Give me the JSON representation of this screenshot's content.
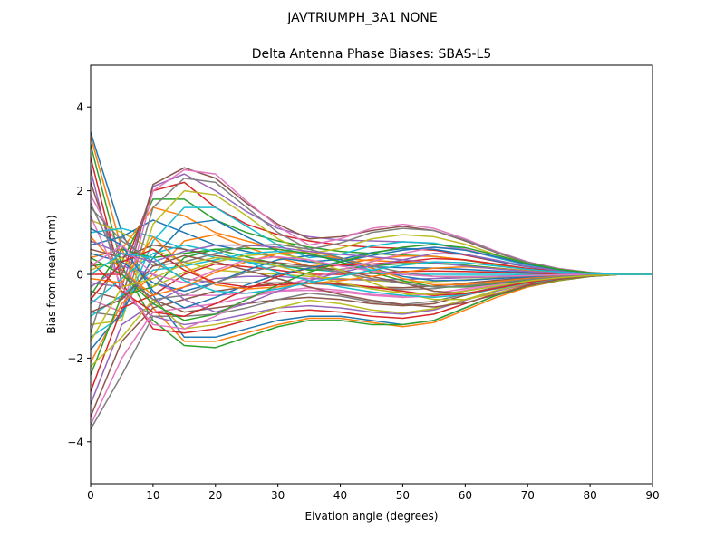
{
  "figure": {
    "suptitle": "JAVTRIUMPH_3A1  NONE"
  },
  "chart_data": {
    "type": "line",
    "title": "Delta Antenna Phase Biases: SBAS-L5",
    "xlabel": "Elvation angle (degrees)",
    "ylabel": "Bias from mean (mm)",
    "xlim": [
      0,
      90
    ],
    "ylim": [
      -5,
      5
    ],
    "xticks": [
      0,
      10,
      20,
      30,
      40,
      50,
      60,
      70,
      80,
      90
    ],
    "yticks": [
      -4,
      -2,
      0,
      2,
      4
    ],
    "ytick_labels": [
      "−4",
      "−2",
      "0",
      "2",
      "4"
    ],
    "grid": false,
    "legend": "none",
    "x": [
      0,
      5,
      10,
      15,
      20,
      25,
      30,
      35,
      40,
      45,
      50,
      55,
      60,
      65,
      70,
      75,
      80,
      85,
      90
    ],
    "colors": [
      "#1f77b4",
      "#ff7f0e",
      "#2ca02c",
      "#d62728",
      "#9467bd",
      "#8c564b",
      "#e377c2",
      "#7f7f7f",
      "#bcbd22",
      "#17becf"
    ],
    "series": [
      {
        "values": [
          3.4,
          1.0,
          -0.5,
          -1.5,
          -1.5,
          -1.3,
          -1.1,
          -1.0,
          -1.0,
          -1.1,
          -1.2,
          -1.1,
          -0.8,
          -0.5,
          -0.3,
          -0.15,
          -0.05,
          0,
          0
        ]
      },
      {
        "values": [
          3.3,
          0.6,
          -0.8,
          -1.6,
          -1.6,
          -1.4,
          -1.2,
          -1.05,
          -1.05,
          -1.15,
          -1.25,
          -1.15,
          -0.85,
          -0.55,
          -0.3,
          -0.15,
          -0.05,
          0,
          0
        ]
      },
      {
        "values": [
          3.1,
          0.2,
          -1.1,
          -1.7,
          -1.75,
          -1.5,
          -1.25,
          -1.1,
          -1.1,
          -1.2,
          -1.2,
          -1.1,
          -0.8,
          -0.5,
          -0.28,
          -0.14,
          -0.05,
          0,
          0
        ]
      },
      {
        "values": [
          2.8,
          -0.2,
          -1.3,
          -1.4,
          -1.3,
          -1.1,
          -0.9,
          -0.85,
          -0.9,
          -1.0,
          -1.05,
          -0.95,
          -0.7,
          -0.45,
          -0.25,
          -0.12,
          -0.04,
          0,
          0
        ]
      },
      {
        "values": [
          2.5,
          -0.5,
          -1.0,
          -1.2,
          -1.1,
          -0.95,
          -0.8,
          -0.75,
          -0.8,
          -0.9,
          -0.95,
          -0.85,
          -0.62,
          -0.4,
          -0.22,
          -0.1,
          -0.03,
          0,
          0
        ]
      },
      {
        "values": [
          2.2,
          0.0,
          -0.6,
          -0.9,
          -0.8,
          -0.7,
          -0.6,
          -0.55,
          -0.6,
          -0.7,
          -0.75,
          -0.7,
          -0.5,
          -0.33,
          -0.18,
          -0.09,
          -0.03,
          0,
          0
        ]
      },
      {
        "values": [
          1.9,
          0.5,
          -0.2,
          -0.5,
          -0.5,
          -0.45,
          -0.4,
          -0.38,
          -0.42,
          -0.5,
          -0.55,
          -0.52,
          -0.38,
          -0.25,
          -0.14,
          -0.07,
          -0.02,
          0,
          0
        ]
      },
      {
        "values": [
          1.6,
          0.8,
          0.3,
          -0.1,
          -0.2,
          -0.2,
          -0.2,
          -0.22,
          -0.26,
          -0.32,
          -0.36,
          -0.34,
          -0.25,
          -0.17,
          -0.1,
          -0.05,
          -0.02,
          0,
          0
        ]
      },
      {
        "values": [
          1.3,
          1.0,
          0.6,
          0.3,
          0.1,
          0.05,
          0.0,
          -0.05,
          -0.1,
          -0.15,
          -0.18,
          -0.17,
          -0.13,
          -0.09,
          -0.05,
          -0.03,
          -0.01,
          0,
          0
        ]
      },
      {
        "values": [
          1.0,
          1.1,
          0.9,
          0.6,
          0.4,
          0.3,
          0.2,
          0.12,
          0.06,
          0.02,
          0.0,
          0.0,
          0.0,
          0.0,
          0.0,
          0.0,
          0.0,
          0,
          0
        ]
      },
      {
        "values": [
          0.7,
          0.9,
          1.3,
          1.0,
          0.7,
          0.55,
          0.4,
          0.3,
          0.22,
          0.18,
          0.16,
          0.15,
          0.12,
          0.08,
          0.05,
          0.03,
          0.01,
          0,
          0
        ]
      },
      {
        "values": [
          0.4,
          0.6,
          1.6,
          1.4,
          1.0,
          0.8,
          0.6,
          0.48,
          0.38,
          0.33,
          0.3,
          0.28,
          0.22,
          0.15,
          0.09,
          0.05,
          0.02,
          0,
          0
        ]
      },
      {
        "values": [
          0.2,
          0.3,
          1.8,
          1.8,
          1.3,
          1.0,
          0.8,
          0.65,
          0.55,
          0.5,
          0.46,
          0.43,
          0.34,
          0.23,
          0.13,
          0.07,
          0.02,
          0,
          0
        ]
      },
      {
        "values": [
          0.0,
          0.0,
          2.0,
          2.2,
          1.6,
          1.2,
          0.95,
          0.8,
          0.7,
          0.65,
          0.62,
          0.58,
          0.46,
          0.31,
          0.18,
          0.09,
          0.03,
          0,
          0
        ]
      },
      {
        "values": [
          -0.2,
          -0.3,
          2.1,
          2.4,
          2.0,
          1.5,
          1.1,
          0.9,
          0.82,
          0.8,
          0.78,
          0.74,
          0.58,
          0.4,
          0.23,
          0.11,
          0.04,
          0,
          0
        ]
      },
      {
        "values": [
          -0.4,
          -0.6,
          2.15,
          2.55,
          2.3,
          1.7,
          1.2,
          0.85,
          0.9,
          1.05,
          1.15,
          1.05,
          0.8,
          0.52,
          0.28,
          0.13,
          0.04,
          0,
          0
        ]
      },
      {
        "values": [
          -0.6,
          -0.9,
          2.0,
          2.5,
          2.4,
          1.75,
          1.15,
          0.7,
          0.85,
          1.1,
          1.2,
          1.1,
          0.85,
          0.55,
          0.3,
          0.14,
          0.05,
          0,
          0
        ]
      },
      {
        "values": [
          -0.9,
          -1.0,
          1.6,
          2.3,
          2.2,
          1.6,
          1.0,
          0.6,
          0.75,
          1.0,
          1.1,
          1.05,
          0.82,
          0.53,
          0.29,
          0.13,
          0.04,
          0,
          0
        ]
      },
      {
        "values": [
          -1.2,
          -1.1,
          1.2,
          2.0,
          1.9,
          1.4,
          0.85,
          0.5,
          0.62,
          0.85,
          0.95,
          0.9,
          0.72,
          0.47,
          0.26,
          0.12,
          0.04,
          0,
          0
        ]
      },
      {
        "values": [
          -1.5,
          -1.0,
          0.8,
          1.6,
          1.6,
          1.15,
          0.7,
          0.4,
          0.48,
          0.68,
          0.78,
          0.75,
          0.6,
          0.4,
          0.22,
          0.1,
          0.03,
          0,
          0
        ]
      },
      {
        "values": [
          -1.8,
          -0.9,
          0.4,
          1.2,
          1.3,
          0.9,
          0.55,
          0.3,
          0.36,
          0.52,
          0.62,
          0.6,
          0.48,
          0.32,
          0.18,
          0.08,
          0.03,
          0,
          0
        ]
      },
      {
        "values": [
          -2.1,
          -0.7,
          0.0,
          0.8,
          0.95,
          0.65,
          0.4,
          0.2,
          0.24,
          0.36,
          0.44,
          0.43,
          0.35,
          0.24,
          0.13,
          0.06,
          0.02,
          0,
          0
        ]
      },
      {
        "values": [
          -2.4,
          -0.5,
          -0.3,
          0.4,
          0.6,
          0.42,
          0.25,
          0.1,
          0.12,
          0.2,
          0.26,
          0.26,
          0.22,
          0.15,
          0.08,
          0.04,
          0.01,
          0,
          0
        ]
      },
      {
        "values": [
          -2.8,
          -0.8,
          -0.5,
          0.0,
          0.25,
          0.18,
          0.1,
          0.0,
          0.0,
          0.03,
          0.07,
          0.08,
          0.07,
          0.05,
          0.03,
          0.01,
          0.0,
          0,
          0
        ]
      },
      {
        "values": [
          -3.1,
          -1.2,
          -0.7,
          -0.3,
          -0.1,
          -0.05,
          -0.05,
          -0.1,
          -0.12,
          -0.13,
          -0.12,
          -0.1,
          -0.08,
          -0.05,
          -0.03,
          -0.01,
          0.0,
          0,
          0
        ]
      },
      {
        "values": [
          -3.4,
          -1.6,
          -0.8,
          -0.6,
          -0.4,
          -0.3,
          -0.2,
          -0.2,
          -0.24,
          -0.3,
          -0.32,
          -0.28,
          -0.21,
          -0.14,
          -0.08,
          -0.04,
          -0.01,
          0,
          0
        ]
      },
      {
        "values": [
          -3.6,
          -2.0,
          -0.9,
          -0.8,
          -0.7,
          -0.55,
          -0.4,
          -0.32,
          -0.38,
          -0.48,
          -0.52,
          -0.46,
          -0.34,
          -0.22,
          -0.12,
          -0.06,
          -0.02,
          0,
          0
        ]
      },
      {
        "values": [
          -3.7,
          -2.4,
          -1.0,
          -1.0,
          -0.95,
          -0.8,
          -0.6,
          -0.45,
          -0.52,
          -0.66,
          -0.72,
          -0.64,
          -0.47,
          -0.3,
          -0.17,
          -0.08,
          -0.03,
          0,
          0
        ]
      },
      {
        "values": [
          -2.2,
          -1.5,
          -0.6,
          -1.3,
          -1.2,
          -1.05,
          -0.8,
          -0.62,
          -0.7,
          -0.85,
          -0.92,
          -0.82,
          -0.6,
          -0.38,
          -0.21,
          -0.1,
          -0.03,
          0,
          0
        ]
      },
      {
        "values": [
          -1.0,
          -0.5,
          0.1,
          0.2,
          0.35,
          0.5,
          0.55,
          0.5,
          0.3,
          0.1,
          0.0,
          -0.05,
          -0.05,
          -0.04,
          -0.02,
          -0.01,
          0.0,
          0,
          0
        ]
      },
      {
        "values": [
          0.5,
          0.3,
          -0.2,
          -0.4,
          -0.2,
          0.1,
          0.35,
          0.45,
          0.35,
          0.15,
          -0.05,
          -0.15,
          -0.14,
          -0.1,
          -0.06,
          -0.03,
          -0.01,
          0,
          0
        ]
      },
      {
        "values": [
          0.9,
          0.1,
          -0.5,
          -0.3,
          0.05,
          0.3,
          0.5,
          0.55,
          0.4,
          0.15,
          -0.1,
          -0.25,
          -0.24,
          -0.17,
          -0.1,
          -0.05,
          -0.02,
          0,
          0
        ]
      },
      {
        "values": [
          -0.5,
          0.6,
          0.4,
          0.5,
          0.6,
          0.62,
          0.6,
          0.5,
          0.3,
          0.05,
          -0.15,
          -0.3,
          -0.3,
          -0.22,
          -0.13,
          -0.06,
          -0.02,
          0,
          0
        ]
      },
      {
        "values": [
          0.3,
          -0.4,
          -0.9,
          -1.0,
          -0.7,
          -0.35,
          -0.05,
          0.15,
          0.22,
          0.25,
          0.3,
          0.38,
          0.35,
          0.25,
          0.14,
          0.07,
          0.02,
          0,
          0
        ]
      },
      {
        "values": [
          -0.3,
          0.2,
          0.0,
          -0.6,
          -0.9,
          -0.7,
          -0.4,
          -0.15,
          0.05,
          0.2,
          0.35,
          0.5,
          0.48,
          0.34,
          0.19,
          0.09,
          0.03,
          0,
          0
        ]
      },
      {
        "values": [
          0.6,
          0.4,
          0.7,
          0.6,
          0.45,
          0.35,
          0.28,
          0.2,
          0.1,
          -0.05,
          -0.2,
          -0.4,
          -0.45,
          -0.34,
          -0.2,
          -0.1,
          -0.03,
          0,
          0
        ]
      },
      {
        "values": [
          1.4,
          -0.3,
          -1.2,
          -1.3,
          -1.0,
          -0.6,
          -0.3,
          -0.1,
          0.1,
          0.3,
          0.5,
          0.65,
          0.6,
          0.42,
          0.24,
          0.11,
          0.04,
          0,
          0
        ]
      },
      {
        "values": [
          -1.4,
          0.9,
          0.2,
          0.3,
          0.5,
          0.68,
          0.72,
          0.6,
          0.4,
          0.2,
          0.05,
          -0.05,
          -0.08,
          -0.06,
          -0.04,
          -0.02,
          -0.01,
          0,
          0
        ]
      },
      {
        "values": [
          0.1,
          0.4,
          -0.3,
          0.05,
          0.3,
          0.45,
          0.5,
          0.35,
          0.1,
          -0.2,
          -0.45,
          -0.6,
          -0.6,
          -0.45,
          -0.27,
          -0.13,
          -0.04,
          0,
          0
        ]
      },
      {
        "values": [
          -0.7,
          -0.1,
          0.5,
          0.7,
          0.55,
          0.3,
          0.05,
          -0.15,
          -0.3,
          -0.42,
          -0.5,
          -0.55,
          -0.48,
          -0.34,
          -0.2,
          -0.1,
          -0.03,
          0,
          0
        ]
      },
      {
        "values": [
          1.1,
          0.7,
          -0.4,
          -0.8,
          -0.55,
          -0.25,
          0.0,
          0.15,
          0.3,
          0.45,
          0.58,
          0.65,
          0.58,
          0.42,
          0.24,
          0.11,
          0.04,
          0,
          0
        ]
      },
      {
        "values": [
          -0.1,
          -0.2,
          0.9,
          0.2,
          -0.25,
          -0.35,
          -0.3,
          -0.22,
          -0.15,
          -0.05,
          0.05,
          0.15,
          0.18,
          0.14,
          0.08,
          0.04,
          0.01,
          0,
          0
        ]
      },
      {
        "values": [
          0.4,
          0.0,
          -0.7,
          -1.1,
          -0.95,
          -0.6,
          -0.25,
          0.05,
          0.3,
          0.5,
          0.65,
          0.72,
          0.64,
          0.46,
          0.26,
          0.12,
          0.04,
          0,
          0
        ]
      },
      {
        "values": [
          -0.6,
          0.3,
          0.6,
          0.1,
          -0.2,
          -0.3,
          -0.25,
          -0.2,
          -0.22,
          -0.3,
          -0.4,
          -0.5,
          -0.46,
          -0.33,
          -0.19,
          -0.09,
          -0.03,
          0,
          0
        ]
      },
      {
        "values": [
          0.8,
          0.5,
          0.3,
          0.55,
          0.7,
          0.7,
          0.65,
          0.55,
          0.48,
          0.42,
          0.35,
          0.28,
          0.2,
          0.13,
          0.07,
          0.03,
          0.01,
          0,
          0
        ]
      },
      {
        "values": [
          -0.9,
          -0.6,
          0.2,
          0.45,
          0.3,
          0.1,
          -0.1,
          -0.3,
          -0.48,
          -0.62,
          -0.72,
          -0.78,
          -0.68,
          -0.48,
          -0.27,
          -0.12,
          -0.04,
          0,
          0
        ]
      },
      {
        "values": [
          0.2,
          0.7,
          0.0,
          -0.2,
          0.1,
          0.35,
          0.42,
          0.35,
          0.2,
          0.08,
          0.0,
          -0.05,
          -0.06,
          -0.05,
          -0.03,
          -0.01,
          0.0,
          0,
          0
        ]
      },
      {
        "values": [
          1.7,
          0.1,
          -0.6,
          -0.5,
          -0.2,
          0.05,
          0.2,
          0.18,
          0.05,
          -0.1,
          -0.22,
          -0.3,
          -0.28,
          -0.2,
          -0.12,
          -0.06,
          -0.02,
          0,
          0
        ]
      },
      {
        "values": [
          -1.6,
          -0.3,
          -0.1,
          0.25,
          0.4,
          0.35,
          0.2,
          0.0,
          -0.2,
          -0.35,
          -0.45,
          -0.48,
          -0.4,
          -0.28,
          -0.16,
          -0.08,
          -0.03,
          0,
          0
        ]
      },
      {
        "values": [
          0.0,
          0.5,
          0.4,
          -0.15,
          -0.4,
          -0.45,
          -0.35,
          -0.2,
          -0.05,
          0.1,
          0.22,
          0.3,
          0.28,
          0.2,
          0.12,
          0.06,
          0.02,
          0,
          0
        ]
      }
    ]
  }
}
